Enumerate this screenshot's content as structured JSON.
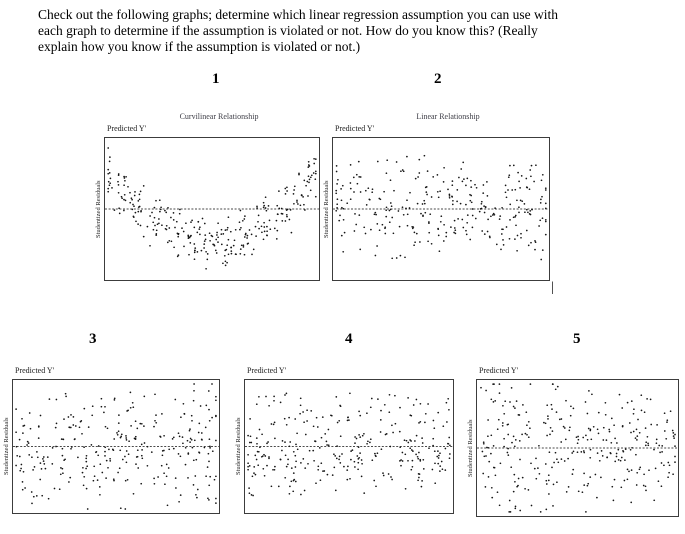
{
  "question": {
    "lines": [
      "Check out the following graphs; determine which linear regression assumption you can use with",
      "each graph to determine if the assumption is violated or not. How do you know this? (Really",
      "explain how you know if the assumption is violated or not.)"
    ]
  },
  "cursor_glyph": "|",
  "chart_data": [
    {
      "number": "1",
      "type": "scatter",
      "title": "Curvilinear Relationship",
      "xlabel": "Predicted Y'",
      "ylabel": "Studentized Residuals",
      "pattern": "curvilinear",
      "n_points": 300,
      "seed": 11,
      "zero_line": true,
      "description": "Residuals form a U-shaped curvilinear band around the dotted zero line"
    },
    {
      "number": "2",
      "type": "scatter",
      "title": "Linear Relationship",
      "xlabel": "Predicted Y'",
      "ylabel": "Studentized Residuals",
      "pattern": "uniform-wide",
      "n_points": 300,
      "seed": 22,
      "zero_line": true,
      "description": "Residuals scattered randomly in an even band around the dotted zero line"
    },
    {
      "number": "3",
      "type": "scatter",
      "title": "",
      "xlabel": "Predicted Y'",
      "ylabel": "Studentized Residuals",
      "pattern": "uniform-band",
      "n_points": 300,
      "seed": 33,
      "zero_line": true,
      "description": "Even horizontal band of residuals centered on the dotted zero line"
    },
    {
      "number": "4",
      "type": "scatter",
      "title": "",
      "xlabel": "Predicted Y'",
      "ylabel": "Studentized Residuals",
      "pattern": "skewed-band",
      "n_points": 300,
      "seed": 44,
      "zero_line": true,
      "description": "Dense band near the zero line with a sparser cloud of points above it"
    },
    {
      "number": "5",
      "type": "scatter",
      "title": "",
      "xlabel": "Predicted Y'",
      "ylabel": "Studentized Residuals",
      "pattern": "funnel-left",
      "n_points": 300,
      "seed": 55,
      "zero_line": true,
      "description": "Spread of residuals is wider at the left and narrows toward the right"
    }
  ]
}
